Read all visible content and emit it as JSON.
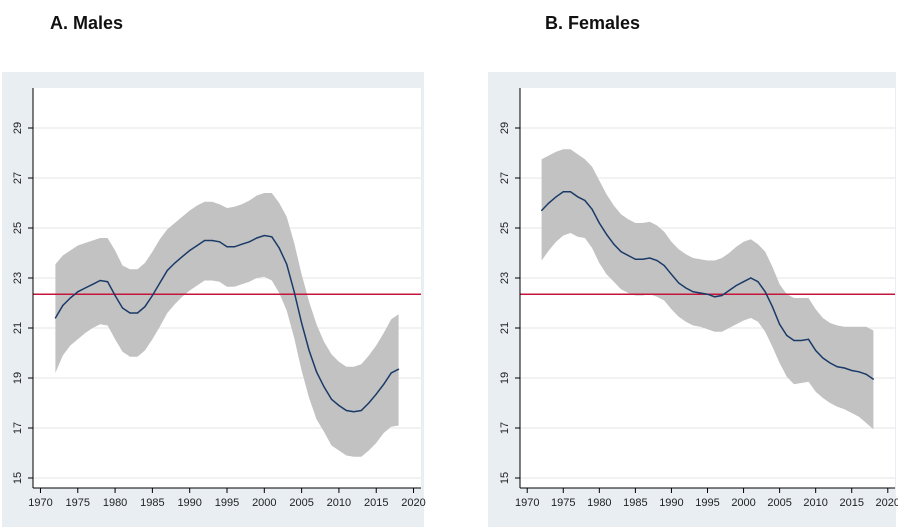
{
  "panels": [
    {
      "title": "A. Males"
    },
    {
      "title": "B. Females"
    }
  ],
  "colors": {
    "frame_bg": "#e8eef2",
    "plot_bg": "#ffffff",
    "band": "#c2c2c2",
    "line": "#1a3a68",
    "reference_line": "#c4163c",
    "grid": "#e6e6e6"
  },
  "chart_data": [
    {
      "type": "line",
      "title": "A. Males",
      "xlabel": "",
      "ylabel": "",
      "xlim": [
        1969,
        2021
      ],
      "ylim": [
        14.6,
        30.6
      ],
      "xticks": [
        1970,
        1975,
        1980,
        1985,
        1990,
        1995,
        2000,
        2005,
        2010,
        2015,
        2020
      ],
      "yticks": [
        15,
        17,
        19,
        21,
        23,
        25,
        27,
        29
      ],
      "grid": true,
      "reference_line": 22.35,
      "x": [
        1972,
        1973,
        1974,
        1975,
        1976,
        1977,
        1978,
        1979,
        1980,
        1981,
        1982,
        1983,
        1984,
        1985,
        1986,
        1987,
        1988,
        1989,
        1990,
        1991,
        1992,
        1993,
        1994,
        1995,
        1996,
        1997,
        1998,
        1999,
        2000,
        2001,
        2002,
        2003,
        2004,
        2005,
        2006,
        2007,
        2008,
        2009,
        2010,
        2011,
        2012,
        2013,
        2014,
        2015,
        2016,
        2017,
        2018
      ],
      "estimate": [
        21.4,
        21.9,
        22.2,
        22.45,
        22.6,
        22.75,
        22.9,
        22.85,
        22.3,
        21.8,
        21.6,
        21.6,
        21.85,
        22.3,
        22.8,
        23.3,
        23.6,
        23.85,
        24.1,
        24.3,
        24.5,
        24.5,
        24.45,
        24.25,
        24.25,
        24.35,
        24.45,
        24.6,
        24.7,
        24.65,
        24.2,
        23.55,
        22.45,
        21.2,
        20.1,
        19.25,
        18.65,
        18.15,
        17.9,
        17.7,
        17.65,
        17.7,
        18.0,
        18.35,
        18.75,
        19.2,
        19.35
      ],
      "ci_upper": [
        23.55,
        23.9,
        24.1,
        24.3,
        24.4,
        24.5,
        24.6,
        24.6,
        24.1,
        23.5,
        23.35,
        23.35,
        23.6,
        24.05,
        24.55,
        24.95,
        25.2,
        25.45,
        25.7,
        25.9,
        26.05,
        26.05,
        25.95,
        25.8,
        25.85,
        25.95,
        26.1,
        26.3,
        26.4,
        26.4,
        26.0,
        25.45,
        24.4,
        23.15,
        22.05,
        21.15,
        20.45,
        19.95,
        19.65,
        19.45,
        19.45,
        19.55,
        19.9,
        20.3,
        20.8,
        21.35,
        21.55
      ],
      "ci_lower": [
        19.2,
        19.9,
        20.3,
        20.55,
        20.8,
        21.0,
        21.15,
        21.1,
        20.55,
        20.05,
        19.85,
        19.85,
        20.1,
        20.55,
        21.05,
        21.6,
        21.95,
        22.25,
        22.5,
        22.7,
        22.9,
        22.9,
        22.85,
        22.65,
        22.65,
        22.75,
        22.85,
        23.0,
        23.05,
        22.9,
        22.4,
        21.7,
        20.6,
        19.3,
        18.2,
        17.35,
        16.85,
        16.3,
        16.1,
        15.9,
        15.85,
        15.85,
        16.1,
        16.4,
        16.8,
        17.05,
        17.1
      ]
    },
    {
      "type": "line",
      "title": "B. Females",
      "xlabel": "",
      "ylabel": "",
      "xlim": [
        1969,
        2021
      ],
      "ylim": [
        14.6,
        30.6
      ],
      "xticks": [
        1970,
        1975,
        1980,
        1985,
        1990,
        1995,
        2000,
        2005,
        2010,
        2015,
        2020
      ],
      "yticks": [
        15,
        17,
        19,
        21,
        23,
        25,
        27,
        29
      ],
      "grid": true,
      "reference_line": 22.35,
      "x": [
        1972,
        1973,
        1974,
        1975,
        1976,
        1977,
        1978,
        1979,
        1980,
        1981,
        1982,
        1983,
        1984,
        1985,
        1986,
        1987,
        1988,
        1989,
        1990,
        1991,
        1992,
        1993,
        1994,
        1995,
        1996,
        1997,
        1998,
        1999,
        2000,
        2001,
        2002,
        2003,
        2004,
        2005,
        2006,
        2007,
        2008,
        2009,
        2010,
        2011,
        2012,
        2013,
        2014,
        2015,
        2016,
        2017,
        2018
      ],
      "estimate": [
        25.7,
        26.0,
        26.25,
        26.45,
        26.45,
        26.25,
        26.1,
        25.75,
        25.2,
        24.75,
        24.35,
        24.05,
        23.9,
        23.75,
        23.75,
        23.8,
        23.7,
        23.5,
        23.15,
        22.8,
        22.6,
        22.45,
        22.4,
        22.35,
        22.25,
        22.3,
        22.5,
        22.7,
        22.85,
        23.0,
        22.85,
        22.45,
        21.85,
        21.15,
        20.7,
        20.5,
        20.5,
        20.55,
        20.1,
        19.8,
        19.6,
        19.45,
        19.4,
        19.3,
        19.25,
        19.15,
        18.95
      ],
      "ci_upper": [
        27.75,
        27.9,
        28.05,
        28.15,
        28.15,
        27.95,
        27.75,
        27.45,
        26.9,
        26.35,
        25.9,
        25.55,
        25.35,
        25.2,
        25.2,
        25.25,
        25.1,
        24.85,
        24.45,
        24.15,
        23.95,
        23.8,
        23.75,
        23.7,
        23.7,
        23.8,
        24.0,
        24.25,
        24.45,
        24.55,
        24.35,
        24.05,
        23.45,
        22.75,
        22.35,
        22.2,
        22.2,
        22.2,
        21.75,
        21.4,
        21.2,
        21.1,
        21.05,
        21.05,
        21.05,
        21.05,
        20.9
      ],
      "ci_lower": [
        23.7,
        24.1,
        24.45,
        24.7,
        24.8,
        24.65,
        24.6,
        24.2,
        23.6,
        23.15,
        22.85,
        22.55,
        22.4,
        22.3,
        22.3,
        22.35,
        22.25,
        22.1,
        21.75,
        21.45,
        21.25,
        21.1,
        21.05,
        20.95,
        20.85,
        20.85,
        21.0,
        21.15,
        21.3,
        21.4,
        21.25,
        20.85,
        20.25,
        19.6,
        19.05,
        18.75,
        18.8,
        18.85,
        18.45,
        18.2,
        18.0,
        17.85,
        17.75,
        17.6,
        17.45,
        17.2,
        16.95
      ]
    }
  ]
}
